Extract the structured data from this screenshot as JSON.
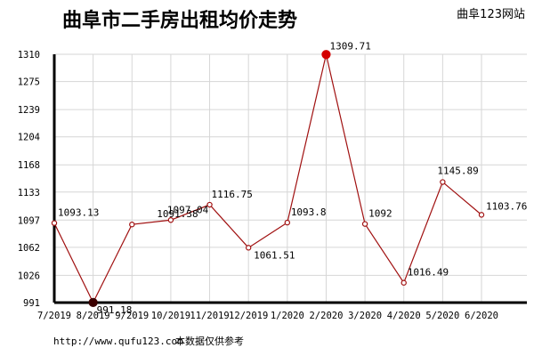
{
  "header": {
    "title": "曲阜市二手房出租均价走势",
    "site_name": "曲阜123网站"
  },
  "footer": {
    "url": "http://www.qufu123.com",
    "note": "本数据仅供参考"
  },
  "chart_data": {
    "type": "line",
    "title": "曲阜市二手房出租均价走势",
    "xlabel": "",
    "ylabel": "",
    "categories": [
      "7/2019",
      "8/2019",
      "9/2019",
      "10/2019",
      "11/2019",
      "12/2019",
      "1/2020",
      "2/2020",
      "3/2020",
      "4/2020",
      "5/2020",
      "6/2020"
    ],
    "series": [
      {
        "values": [
          1093.13,
          991.18,
          1091.38,
          1097.04,
          1116.75,
          1061.51,
          1093.8,
          1309.71,
          1092,
          1016.49,
          1145.89,
          1103.76
        ],
        "labels": [
          "1093.13",
          "991.18",
          "1091.38",
          "1097.04",
          "1116.75",
          "1061.51",
          "1093.8",
          "1309.71",
          "1092",
          "1016.49",
          "1145.89",
          "1103.76"
        ]
      }
    ],
    "yticks": [
      "991",
      "1026",
      "1062",
      "1097",
      "1133",
      "1168",
      "1204",
      "1239",
      "1275",
      "1310"
    ],
    "ylim": [
      991,
      1310
    ],
    "highlight_max_index": 7,
    "highlight_min_index": 1,
    "colors": {
      "line": "#a01010",
      "max_marker": "#d40000",
      "min_marker": "#3a0000",
      "grid": "#d6d6d6",
      "axis": "#000000"
    },
    "grid": true,
    "legend": "none"
  }
}
